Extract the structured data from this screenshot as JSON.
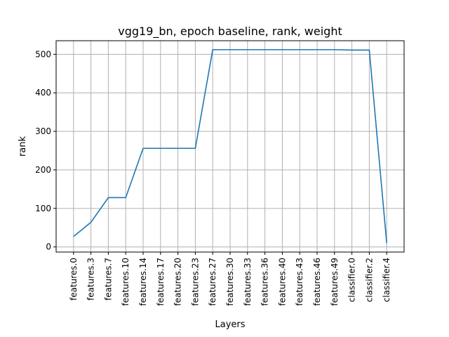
{
  "chart_data": {
    "type": "line",
    "title": "vgg19_bn, epoch baseline, rank, weight",
    "xlabel": "Layers",
    "ylabel": "rank",
    "categories": [
      "features.0",
      "features.3",
      "features.7",
      "features.10",
      "features.14",
      "features.17",
      "features.20",
      "features.23",
      "features.27",
      "features.30",
      "features.33",
      "features.36",
      "features.40",
      "features.43",
      "features.46",
      "features.49",
      "classifier.0",
      "classifier.2",
      "classifier.4"
    ],
    "series": [
      {
        "values": [
          27,
          64,
          128,
          128,
          256,
          256,
          256,
          256,
          512,
          512,
          512,
          512,
          512,
          512,
          512,
          512,
          511,
          511,
          10
        ]
      }
    ],
    "yticks": [
      0,
      100,
      200,
      300,
      400,
      500
    ],
    "ylim": [
      -13.25,
      535.25
    ],
    "grid": true,
    "colors": {
      "series": "#1f77b4"
    }
  }
}
